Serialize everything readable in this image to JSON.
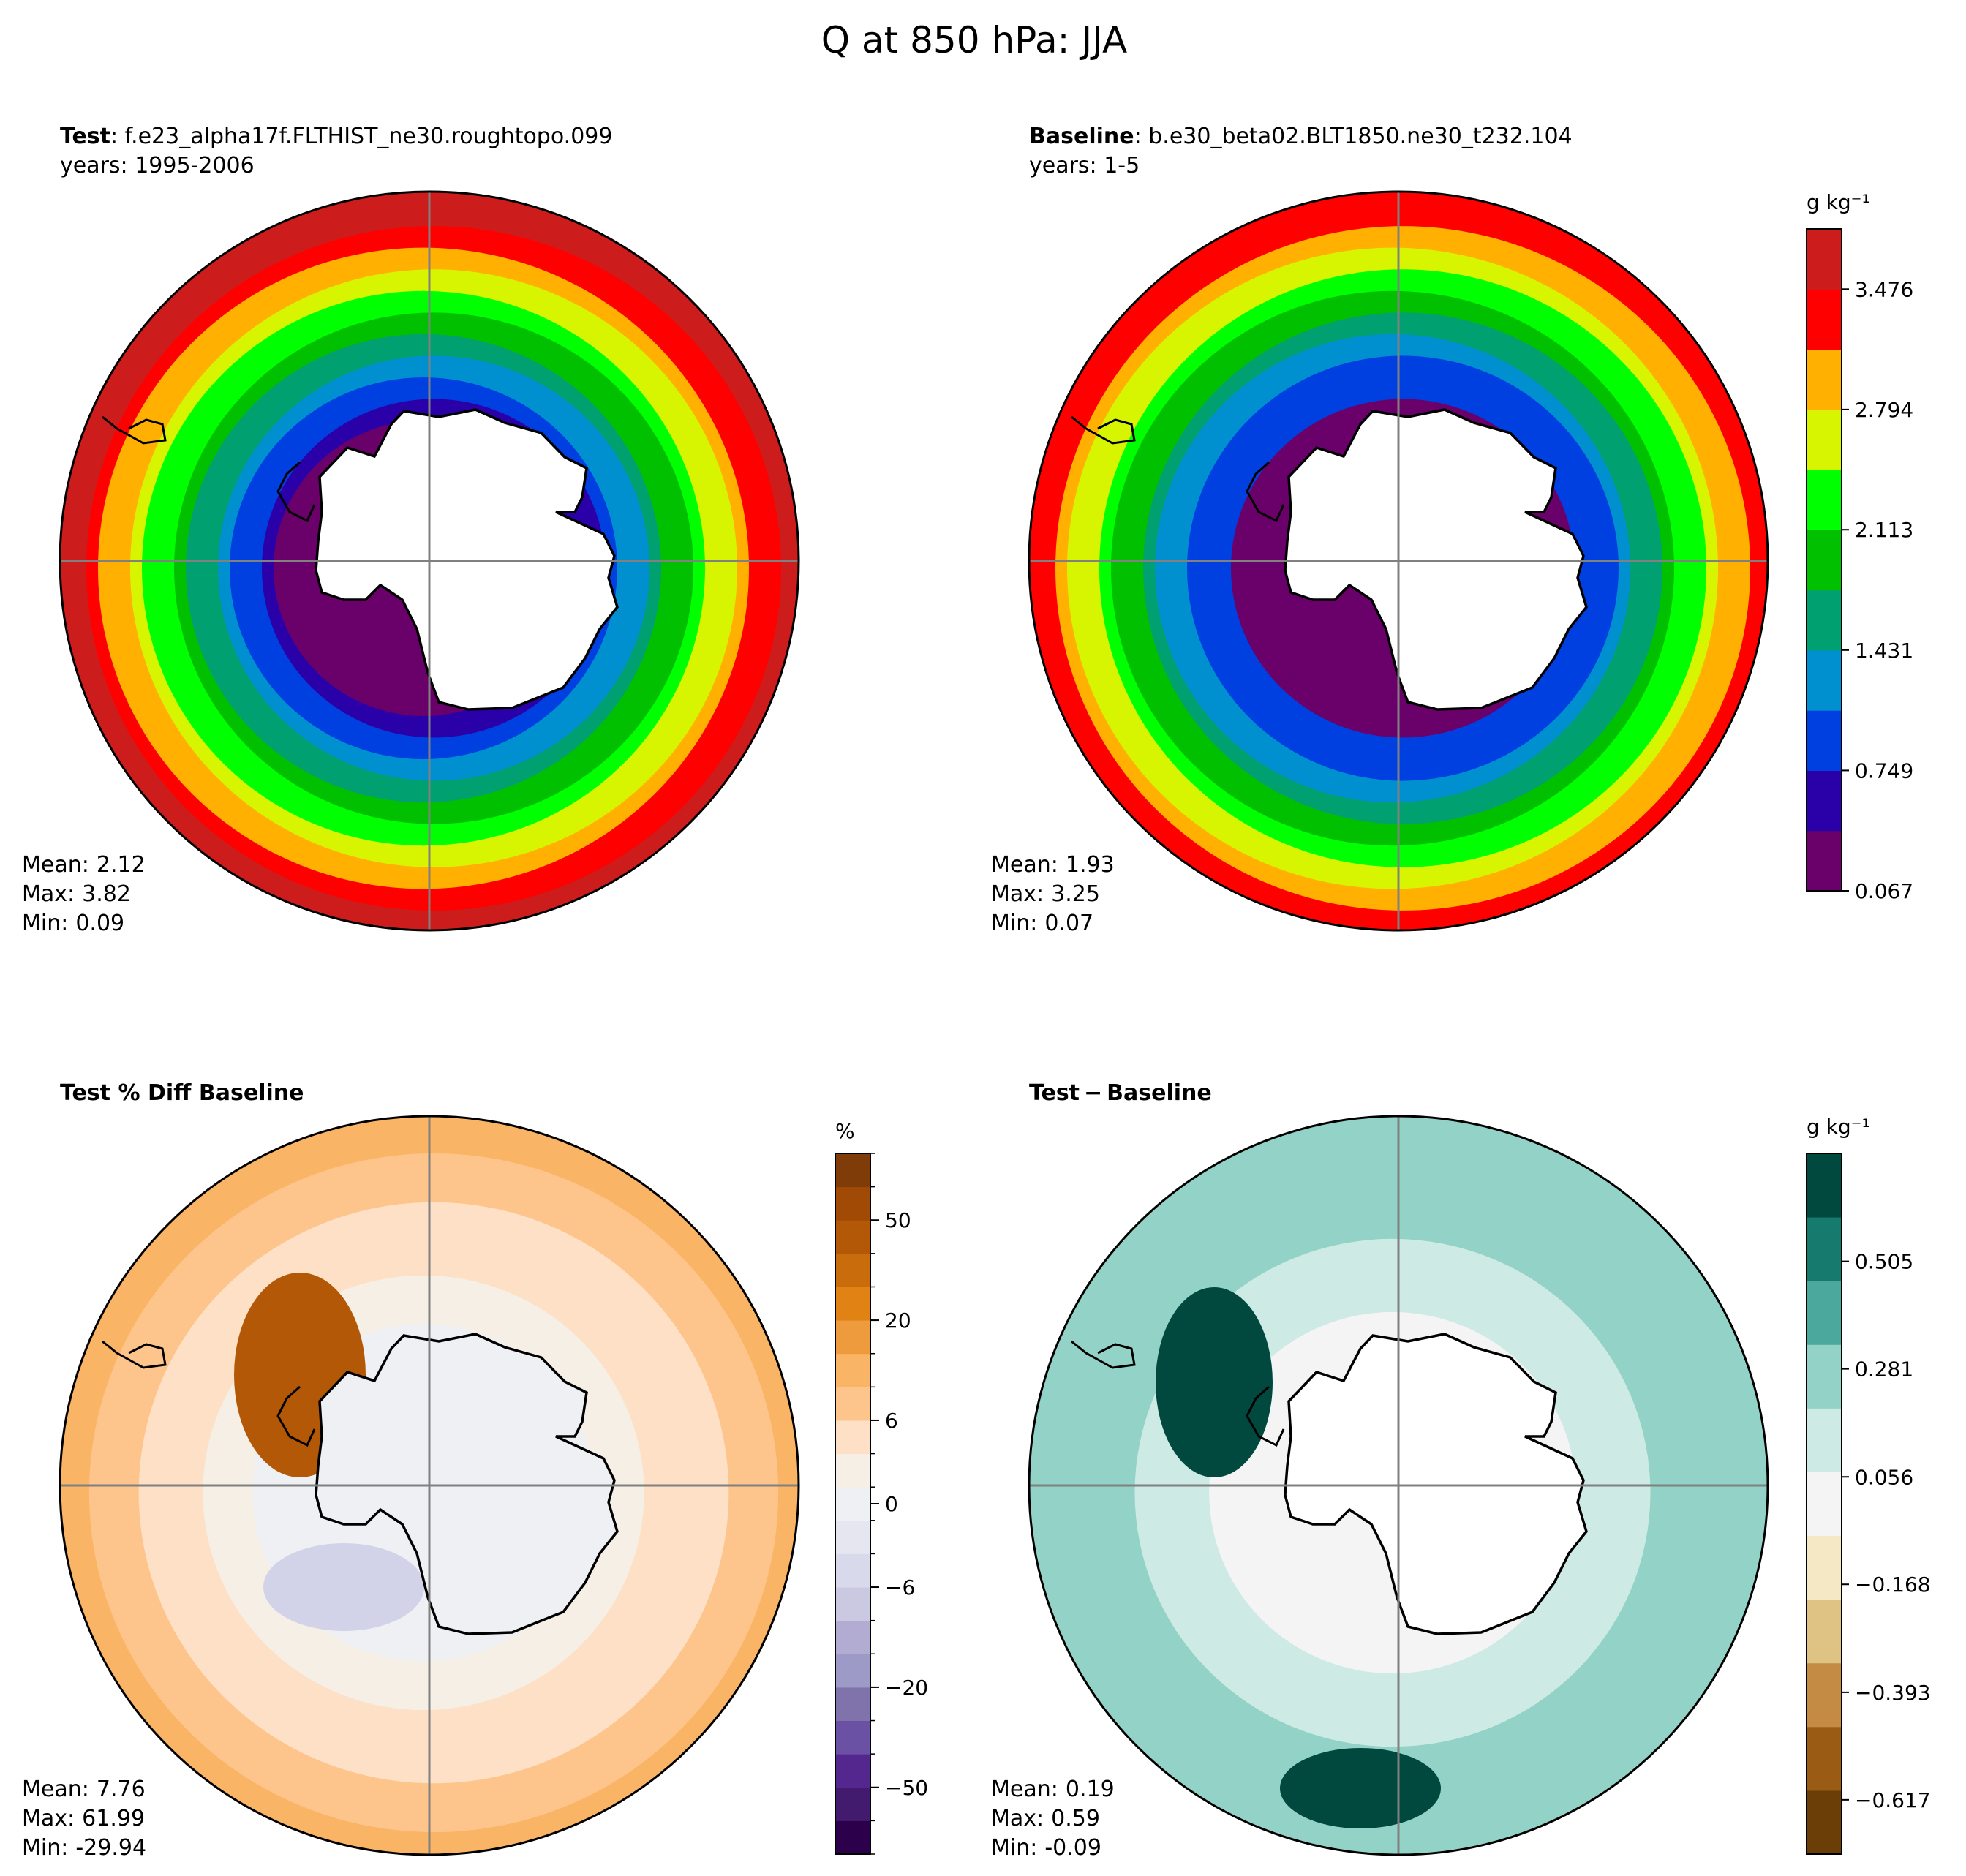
{
  "figure": {
    "title": "Q at 850 hPa: JJA"
  },
  "chart_data": [
    {
      "type": "heatmap",
      "projection": "south polar stereographic",
      "title_bold": "Test",
      "title_rest": ": f.e23_alpha17f.FLTHIST_ne30.roughtopo.099",
      "subtitle": "years: 1995-2006",
      "units": "g kg⁻¹",
      "stats": [
        {
          "label": "Mean:",
          "value": "2.12"
        },
        {
          "label": "Max:",
          "value": "3.82"
        },
        {
          "label": "Min:",
          "value": "0.09"
        }
      ],
      "ring_values": [
        0.15,
        0.45,
        0.8,
        1.1,
        1.45,
        1.8,
        2.15,
        2.5,
        2.8,
        3.15,
        3.5
      ],
      "colorbar": "shared with Baseline"
    },
    {
      "type": "heatmap",
      "projection": "south polar stereographic",
      "title_bold": "Baseline",
      "title_rest": ": b.e30_beta02.BLT1850.ne30_t232.104",
      "subtitle": "years: 1-5",
      "units": "g kg⁻¹",
      "stats": [
        {
          "label": "Mean:",
          "value": "1.93"
        },
        {
          "label": "Max:",
          "value": "3.25"
        },
        {
          "label": "Min:",
          "value": "0.07"
        }
      ],
      "ring_values": [
        0.12,
        0.4,
        0.75,
        1.0,
        1.3,
        1.6,
        1.95,
        2.3,
        2.6,
        2.95,
        3.3
      ],
      "colorbar": {
        "label": "g kg⁻¹",
        "ticks": [
          "0.067",
          "0.749",
          "1.431",
          "2.113",
          "2.794",
          "3.476"
        ],
        "colors": [
          "#6a006a",
          "#2a00a8",
          "#0040e0",
          "#0090d0",
          "#00a070",
          "#00c000",
          "#00ff00",
          "#d8f500",
          "#ffb000",
          "#ff0000",
          "#cc1c1c"
        ]
      }
    },
    {
      "type": "heatmap",
      "projection": "south polar stereographic",
      "title_bold": "Test % Diff Baseline",
      "title_rest": "",
      "stats": [
        {
          "label": "Mean:",
          "value": "7.76"
        },
        {
          "label": "Max:",
          "value": "61.99"
        },
        {
          "label": "Min:",
          "value": "-29.94"
        }
      ],
      "ring_values": [
        3,
        5,
        8,
        10,
        12,
        15,
        18,
        22,
        28
      ],
      "colorbar": {
        "label": "%",
        "ticks": [
          "−50",
          "−20",
          "−6",
          "0",
          "6",
          "20",
          "50"
        ],
        "colors": [
          "#2d004b",
          "#421a6e",
          "#54278f",
          "#6a51a3",
          "#8073ac",
          "#9e9ac8",
          "#b2abd2",
          "#cbc9e2",
          "#d8daeb",
          "#e6e6f0",
          "#eef0f4",
          "#f5efe6",
          "#fde0c5",
          "#fdc58c",
          "#f9b466",
          "#ee9b3e",
          "#e08214",
          "#c96c0c",
          "#b35806",
          "#a04a06",
          "#7f3b08"
        ]
      }
    },
    {
      "type": "heatmap",
      "projection": "south polar stereographic",
      "title_bold": "Test − Baseline",
      "title_rest": "",
      "stats": [
        {
          "label": "Mean:",
          "value": "0.19"
        },
        {
          "label": "Max:",
          "value": "0.59"
        },
        {
          "label": "Min:",
          "value": "-0.09"
        }
      ],
      "ring_values": [
        0.05,
        0.1,
        0.15,
        0.2,
        0.25,
        0.3
      ],
      "colorbar": {
        "label": "g kg⁻¹",
        "ticks": [
          "−0.617",
          "−0.393",
          "−0.168",
          "0.056",
          "0.281",
          "0.505"
        ],
        "colors": [
          "#6b3d07",
          "#9a5b15",
          "#c48b45",
          "#dfc385",
          "#f5e8c4",
          "#f4f4f4",
          "#cdeae5",
          "#93d2c6",
          "#4aa89c",
          "#167a6e",
          "#01493f"
        ]
      }
    }
  ]
}
